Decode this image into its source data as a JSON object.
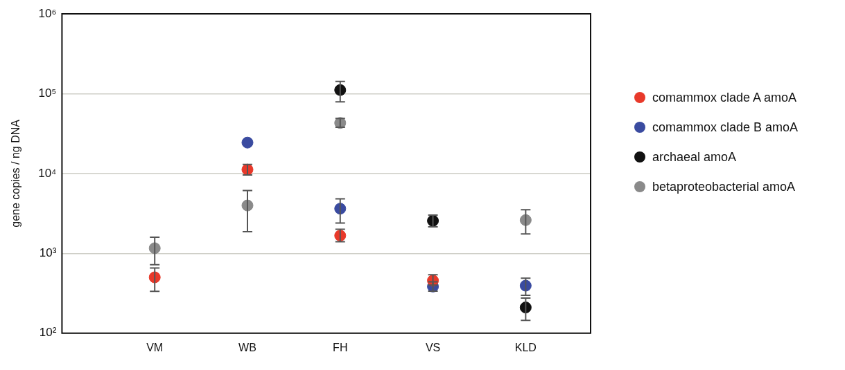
{
  "chart_data": {
    "type": "scatter",
    "ylabel": "gene copies / ng DNA",
    "categories": [
      "VM",
      "WB",
      "FH",
      "VS",
      "KLD"
    ],
    "series": [
      {
        "name": "comammox clade A amoA",
        "color": "#e8392a",
        "values": [
          501,
          11200,
          1670,
          457,
          null
        ],
        "errors": [
          [
            334,
            657
          ],
          [
            9610,
            13000
          ],
          [
            1400,
            2000
          ],
          [
            400,
            540
          ],
          null
        ]
      },
      {
        "name": "comammox clade B amoA",
        "color": "#3a4ba0",
        "values": [
          null,
          24400,
          3630,
          384,
          394
        ],
        "errors": [
          null,
          null,
          [
            2400,
            4820
          ],
          [
            336,
            440
          ],
          [
            299,
            489
          ]
        ]
      },
      {
        "name": "archaeal amoA",
        "color": "#111111",
        "values": [
          null,
          null,
          111000,
          2560,
          210
        ],
        "errors": [
          null,
          null,
          [
            78900,
            142600
          ],
          [
            2150,
            3020
          ],
          [
            145,
            275
          ]
        ]
      },
      {
        "name": "betaproteobacterial amoA",
        "color": "#8a8a8a",
        "values": [
          1160,
          3980,
          43000,
          null,
          2610
        ],
        "errors": [
          [
            721,
            1590
          ],
          [
            1870,
            6110
          ],
          [
            37900,
            49000
          ],
          null,
          [
            1750,
            3520
          ]
        ]
      }
    ],
    "ylim": [
      100,
      1000000
    ],
    "yticks": [
      {
        "value": 100,
        "label": "10²"
      },
      {
        "value": 1000,
        "label": "10³"
      },
      {
        "value": 10000,
        "label": "10⁴"
      },
      {
        "value": 100000,
        "label": "10⁵"
      },
      {
        "value": 1000000,
        "label": "10⁶"
      }
    ],
    "log": "y",
    "grid": "y",
    "legend": "right",
    "marker": "circle"
  }
}
